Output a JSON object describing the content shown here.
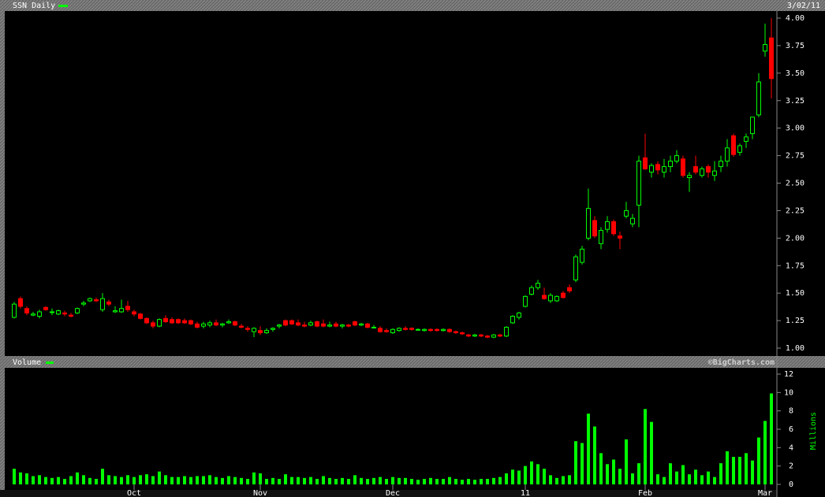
{
  "chart_data": [
    {
      "type": "candlestick",
      "title": "SSN Daily",
      "date_label": "3/02/11",
      "watermark": "©BigCharts.com",
      "up_color": "#00ff00",
      "down_color": "#ff0000",
      "ylim": [
        1,
        4
      ],
      "yticks": [
        {
          "value": 1,
          "label": "1.00"
        },
        {
          "value": 1.25,
          "label": "1.25"
        },
        {
          "value": 1.5,
          "label": "1.50"
        },
        {
          "value": 1.75,
          "label": "1.75"
        },
        {
          "value": 2,
          "label": "2.00"
        },
        {
          "value": 2.25,
          "label": "2.25"
        },
        {
          "value": 2.5,
          "label": "2.50"
        },
        {
          "value": 2.75,
          "label": "2.75"
        },
        {
          "value": 3,
          "label": "3.00"
        },
        {
          "value": 3.25,
          "label": "3.25"
        },
        {
          "value": 3.5,
          "label": "3.50"
        },
        {
          "value": 3.75,
          "label": "3.75"
        },
        {
          "value": 4,
          "label": "4.00"
        }
      ],
      "open": [
        1.28,
        1.45,
        1.36,
        1.3,
        1.29,
        1.37,
        1.33,
        1.31,
        1.32,
        1.3,
        1.32,
        1.4,
        1.43,
        1.44,
        1.35,
        1.42,
        1.33,
        1.33,
        1.38,
        1.33,
        1.31,
        1.27,
        1.23,
        1.2,
        1.27,
        1.26,
        1.26,
        1.25,
        1.25,
        1.22,
        1.2,
        1.21,
        1.23,
        1.21,
        1.23,
        1.24,
        1.2,
        1.18,
        1.15,
        1.16,
        1.14,
        1.17,
        1.2,
        1.25,
        1.25,
        1.23,
        1.21,
        1.21,
        1.24,
        1.22,
        1.2,
        1.22,
        1.2,
        1.21,
        1.24,
        1.21,
        1.22,
        1.19,
        1.18,
        1.16,
        1.14,
        1.16,
        1.18,
        1.18,
        1.17,
        1.16,
        1.17,
        1.17,
        1.16,
        1.17,
        1.15,
        1.14,
        1.12,
        1.11,
        1.12,
        1.11,
        1.1,
        1.12,
        1.11,
        1.23,
        1.28,
        1.38,
        1.49,
        1.55,
        1.48,
        1.43,
        1.43,
        1.5,
        1.55,
        1.62,
        1.78,
        2.0,
        2.16,
        1.95,
        2.08,
        2.15,
        2.02,
        2.2,
        2.13,
        2.3,
        2.73,
        2.6,
        2.67,
        2.6,
        2.65,
        2.7,
        2.72,
        2.55,
        2.65,
        2.57,
        2.65,
        2.57,
        2.65,
        2.7,
        2.93,
        2.78,
        2.88,
        2.95,
        3.12,
        3.7,
        3.82
      ],
      "high": [
        1.42,
        1.47,
        1.38,
        1.33,
        1.35,
        1.38,
        1.36,
        1.35,
        1.34,
        1.32,
        1.37,
        1.43,
        1.46,
        1.46,
        1.5,
        1.44,
        1.38,
        1.44,
        1.43,
        1.35,
        1.32,
        1.28,
        1.25,
        1.27,
        1.3,
        1.28,
        1.27,
        1.27,
        1.26,
        1.24,
        1.24,
        1.25,
        1.26,
        1.23,
        1.26,
        1.25,
        1.22,
        1.2,
        1.19,
        1.2,
        1.18,
        1.19,
        1.22,
        1.26,
        1.26,
        1.26,
        1.24,
        1.25,
        1.25,
        1.26,
        1.24,
        1.24,
        1.22,
        1.22,
        1.25,
        1.23,
        1.23,
        1.21,
        1.2,
        1.18,
        1.18,
        1.19,
        1.2,
        1.19,
        1.18,
        1.18,
        1.18,
        1.18,
        1.18,
        1.18,
        1.16,
        1.15,
        1.13,
        1.13,
        1.13,
        1.12,
        1.13,
        1.13,
        1.2,
        1.3,
        1.33,
        1.48,
        1.57,
        1.62,
        1.55,
        1.5,
        1.48,
        1.52,
        1.58,
        1.85,
        1.93,
        2.45,
        2.2,
        2.1,
        2.2,
        2.17,
        2.06,
        2.33,
        2.22,
        2.75,
        2.95,
        2.68,
        2.7,
        2.72,
        2.75,
        2.8,
        2.75,
        2.6,
        2.75,
        2.65,
        2.67,
        2.7,
        2.75,
        2.9,
        2.95,
        2.86,
        2.95,
        3.1,
        3.5,
        3.95,
        4.0
      ],
      "low": [
        1.27,
        1.36,
        1.3,
        1.29,
        1.27,
        1.34,
        1.3,
        1.3,
        1.29,
        1.28,
        1.31,
        1.38,
        1.42,
        1.42,
        1.33,
        1.38,
        1.32,
        1.32,
        1.33,
        1.29,
        1.26,
        1.22,
        1.18,
        1.19,
        1.23,
        1.22,
        1.22,
        1.22,
        1.21,
        1.18,
        1.18,
        1.19,
        1.2,
        1.19,
        1.22,
        1.2,
        1.18,
        1.15,
        1.1,
        1.12,
        1.13,
        1.15,
        1.18,
        1.2,
        1.21,
        1.2,
        1.19,
        1.2,
        1.19,
        1.19,
        1.19,
        1.19,
        1.18,
        1.19,
        1.2,
        1.2,
        1.18,
        1.18,
        1.14,
        1.14,
        1.13,
        1.15,
        1.16,
        1.16,
        1.16,
        1.15,
        1.15,
        1.15,
        1.15,
        1.14,
        1.13,
        1.12,
        1.1,
        1.1,
        1.1,
        1.09,
        1.09,
        1.1,
        1.1,
        1.22,
        1.26,
        1.37,
        1.48,
        1.53,
        1.44,
        1.41,
        1.42,
        1.45,
        1.5,
        1.6,
        1.76,
        1.98,
        2.0,
        1.9,
        2.05,
        2.02,
        1.9,
        2.18,
        2.1,
        2.1,
        2.62,
        2.55,
        2.58,
        2.55,
        2.6,
        2.68,
        2.55,
        2.42,
        2.58,
        2.55,
        2.55,
        2.52,
        2.6,
        2.65,
        2.74,
        2.75,
        2.82,
        2.9,
        3.1,
        3.65,
        3.27
      ],
      "close": [
        1.4,
        1.38,
        1.32,
        1.31,
        1.33,
        1.35,
        1.33,
        1.34,
        1.31,
        1.29,
        1.36,
        1.41,
        1.45,
        1.43,
        1.45,
        1.4,
        1.34,
        1.36,
        1.35,
        1.31,
        1.27,
        1.23,
        1.2,
        1.26,
        1.24,
        1.23,
        1.23,
        1.23,
        1.22,
        1.19,
        1.22,
        1.23,
        1.21,
        1.22,
        1.24,
        1.21,
        1.19,
        1.17,
        1.18,
        1.14,
        1.16,
        1.18,
        1.21,
        1.21,
        1.22,
        1.21,
        1.2,
        1.23,
        1.2,
        1.2,
        1.21,
        1.2,
        1.21,
        1.2,
        1.21,
        1.22,
        1.19,
        1.19,
        1.15,
        1.15,
        1.17,
        1.18,
        1.17,
        1.17,
        1.17,
        1.17,
        1.16,
        1.16,
        1.17,
        1.15,
        1.14,
        1.13,
        1.11,
        1.12,
        1.11,
        1.1,
        1.12,
        1.11,
        1.19,
        1.29,
        1.32,
        1.47,
        1.55,
        1.59,
        1.45,
        1.48,
        1.47,
        1.46,
        1.52,
        1.83,
        1.9,
        2.27,
        2.02,
        2.07,
        2.15,
        2.04,
        2.0,
        2.25,
        2.18,
        2.7,
        2.63,
        2.66,
        2.62,
        2.65,
        2.7,
        2.75,
        2.57,
        2.57,
        2.6,
        2.63,
        2.6,
        2.61,
        2.7,
        2.82,
        2.76,
        2.84,
        2.92,
        3.1,
        3.42,
        3.76,
        3.45
      ]
    },
    {
      "type": "bar",
      "title": "Volume",
      "axis_label": "Millions",
      "color": "#00ff00",
      "ylim": [
        0,
        12
      ],
      "yticks": [
        0,
        2,
        4,
        6,
        8,
        10,
        12
      ],
      "categories": [
        null,
        null,
        null,
        null,
        null,
        null,
        null,
        null,
        null,
        null,
        null,
        null,
        null,
        null,
        null,
        null,
        null,
        null,
        null,
        "Oct",
        null,
        null,
        null,
        null,
        null,
        null,
        null,
        null,
        null,
        null,
        null,
        null,
        null,
        null,
        null,
        null,
        null,
        null,
        null,
        "Nov",
        null,
        null,
        null,
        null,
        null,
        null,
        null,
        null,
        null,
        null,
        null,
        null,
        null,
        null,
        null,
        null,
        null,
        null,
        null,
        null,
        "Dec",
        null,
        null,
        null,
        null,
        null,
        null,
        null,
        null,
        null,
        null,
        null,
        null,
        null,
        null,
        null,
        null,
        null,
        null,
        null,
        null,
        "11",
        null,
        null,
        null,
        null,
        null,
        null,
        null,
        null,
        null,
        null,
        null,
        null,
        null,
        null,
        null,
        null,
        null,
        null,
        "Feb",
        null,
        null,
        null,
        null,
        null,
        null,
        null,
        null,
        null,
        null,
        null,
        null,
        null,
        null,
        null,
        null,
        null,
        null,
        "Mar",
        null
      ],
      "values": [
        1.7,
        1.3,
        1.2,
        0.9,
        1.0,
        0.8,
        0.7,
        0.8,
        0.6,
        0.9,
        1.3,
        1.0,
        0.7,
        0.6,
        1.7,
        1.0,
        0.9,
        0.8,
        1.0,
        0.8,
        1.0,
        1.1,
        0.9,
        1.4,
        1.0,
        0.8,
        0.8,
        0.9,
        0.8,
        0.9,
        0.9,
        1.0,
        0.8,
        0.7,
        0.9,
        0.8,
        0.7,
        0.6,
        1.3,
        1.2,
        0.6,
        0.7,
        0.6,
        1.1,
        0.8,
        0.8,
        0.7,
        0.8,
        0.6,
        0.9,
        0.7,
        0.6,
        0.7,
        0.6,
        1.0,
        0.7,
        0.6,
        0.7,
        0.8,
        0.6,
        0.8,
        0.7,
        0.7,
        0.6,
        0.5,
        0.6,
        0.7,
        0.6,
        0.6,
        0.8,
        0.6,
        0.5,
        0.6,
        0.5,
        0.6,
        0.6,
        0.7,
        0.8,
        1.2,
        1.6,
        1.5,
        2.0,
        2.5,
        2.2,
        1.7,
        1.0,
        0.7,
        0.9,
        1.0,
        4.7,
        4.5,
        7.7,
        6.3,
        3.4,
        2.2,
        2.7,
        1.7,
        4.9,
        1.2,
        2.3,
        8.2,
        6.8,
        1.1,
        0.8,
        2.3,
        1.4,
        2.1,
        1.1,
        1.6,
        1.0,
        1.4,
        0.8,
        2.3,
        3.6,
        3.0,
        3.0,
        3.4,
        2.6,
        5.1,
        6.9,
        9.9
      ]
    }
  ]
}
